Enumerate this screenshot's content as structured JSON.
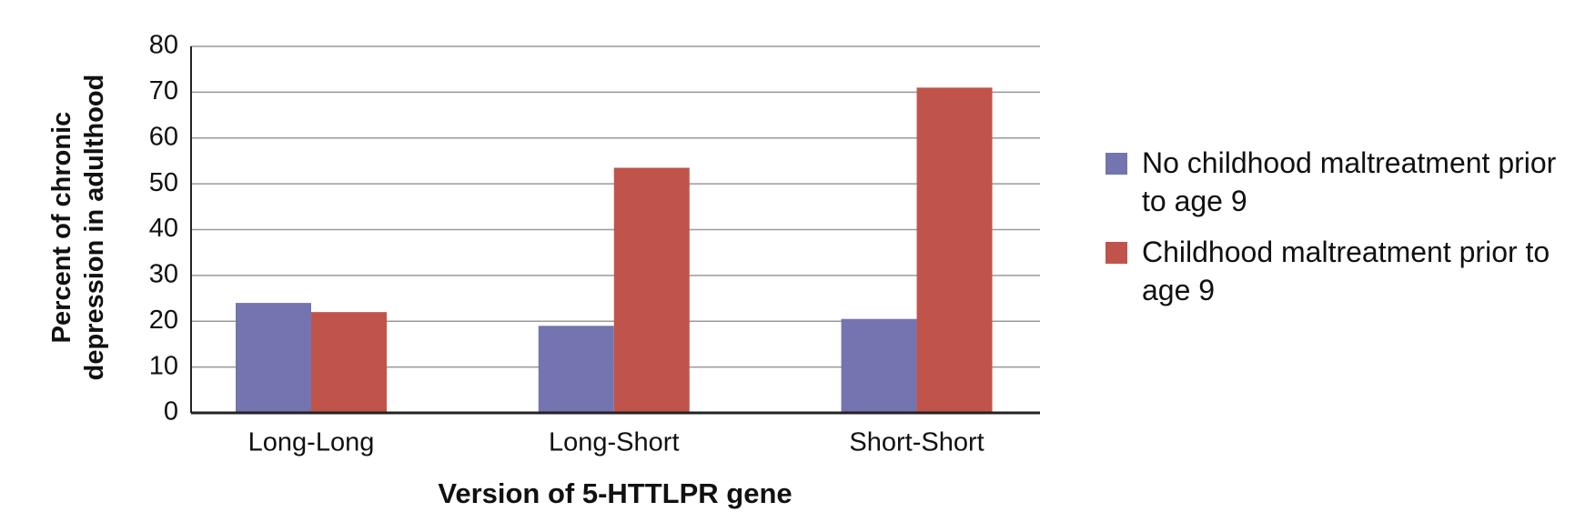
{
  "chart_data": {
    "type": "bar",
    "y_label": "Percent of chronic depression in adulthood",
    "x_label": "Version of 5-HTTLPR gene",
    "categories": [
      "Long-Long",
      "Long-Short",
      "Short-Short"
    ],
    "series": [
      {
        "name": "No childhood maltreatment prior to age 9",
        "color": "#7474b0",
        "values": [
          24,
          19,
          20.5
        ]
      },
      {
        "name": "Childhood maltreatment prior to age 9",
        "color": "#c0544a",
        "values": [
          22,
          53.5,
          71
        ]
      }
    ],
    "ylim": [
      0,
      80
    ],
    "yticks": [
      0,
      10,
      20,
      30,
      40,
      50,
      60,
      70,
      80
    ],
    "grid": true,
    "legend": "right"
  }
}
